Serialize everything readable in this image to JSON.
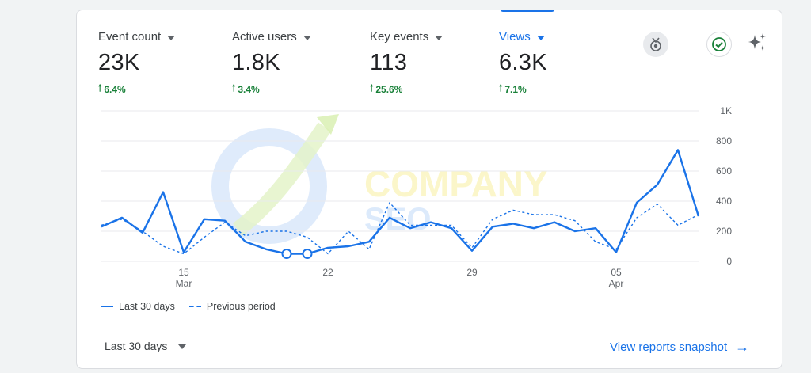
{
  "metrics": [
    {
      "label": "Event count",
      "value": "23K",
      "change": "6.4%"
    },
    {
      "label": "Active users",
      "value": "1.8K",
      "change": "3.4%"
    },
    {
      "label": "Key events",
      "value": "113",
      "change": "25.6%"
    },
    {
      "label": "Views",
      "value": "6.3K",
      "change": "7.1%"
    }
  ],
  "icons": {
    "medal": "medal-icon",
    "check": "check-circle-icon",
    "sparkle": "sparkle-icon"
  },
  "chart_data": {
    "type": "line",
    "title": "",
    "xlabel": "",
    "ylabel": "",
    "ylim": [
      0,
      1000
    ],
    "y_ticks": [
      "1K",
      "800",
      "600",
      "400",
      "200",
      "0"
    ],
    "x_ticks": [
      {
        "label": "15",
        "sublabel": "Mar"
      },
      {
        "label": "22",
        "sublabel": ""
      },
      {
        "label": "29",
        "sublabel": ""
      },
      {
        "label": "05",
        "sublabel": "Apr"
      }
    ],
    "x": [
      "Mar 11",
      "Mar 12",
      "Mar 13",
      "Mar 14",
      "Mar 15",
      "Mar 16",
      "Mar 17",
      "Mar 18",
      "Mar 19",
      "Mar 20",
      "Mar 21",
      "Mar 22",
      "Mar 23",
      "Mar 24",
      "Mar 25",
      "Mar 26",
      "Mar 27",
      "Mar 28",
      "Mar 29",
      "Mar 30",
      "Mar 31",
      "Apr 1",
      "Apr 2",
      "Apr 3",
      "Apr 4",
      "Apr 5",
      "Apr 6",
      "Apr 7",
      "Apr 8",
      "Apr 9"
    ],
    "series": [
      {
        "name": "Last 30 days",
        "style": "solid",
        "color": "#1a73e8",
        "values": [
          230,
          290,
          190,
          460,
          60,
          280,
          270,
          130,
          80,
          50,
          50,
          90,
          100,
          130,
          290,
          220,
          260,
          220,
          70,
          230,
          250,
          220,
          260,
          200,
          220,
          60,
          390,
          510,
          740,
          300
        ]
      },
      {
        "name": "Previous period",
        "style": "dashed",
        "color": "#1a73e8",
        "values": [
          240,
          280,
          200,
          100,
          50,
          160,
          260,
          170,
          200,
          200,
          160,
          50,
          200,
          80,
          390,
          240,
          240,
          240,
          90,
          280,
          340,
          310,
          310,
          270,
          130,
          80,
          290,
          380,
          240,
          310
        ]
      }
    ],
    "highlighted_points": [
      9,
      10
    ],
    "grid": true,
    "legend_position": "bottom-left"
  },
  "legend": {
    "current": "Last 30 days",
    "previous": "Previous period"
  },
  "footer": {
    "range_label": "Last 30 days",
    "snapshot_link": "View reports snapshot"
  },
  "watermark": {
    "line1": "COMPANY",
    "line2": "SEO"
  }
}
